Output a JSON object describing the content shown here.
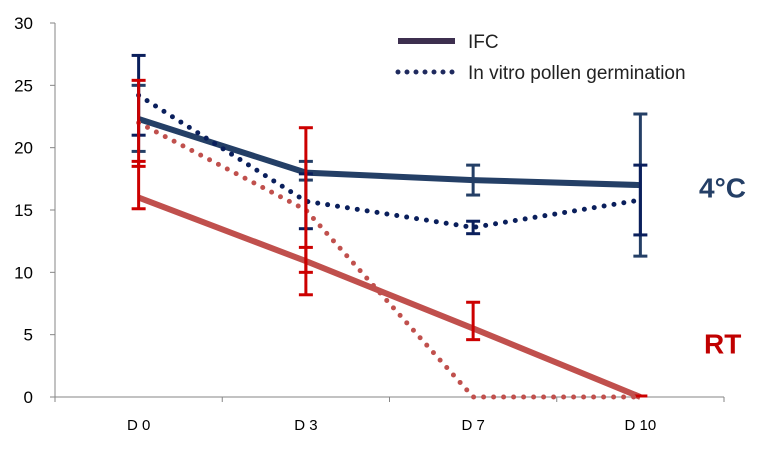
{
  "chart_data": {
    "type": "line",
    "categories": [
      "D 0",
      "D 3",
      "D 7",
      "D 10"
    ],
    "ylim": [
      0,
      30
    ],
    "yticks": [
      0,
      5,
      10,
      15,
      20,
      25,
      30
    ],
    "grid": false,
    "legend_placement": "top-right",
    "legend": [
      {
        "label": "IFC",
        "style": "solid",
        "color": "#3d2f4f"
      },
      {
        "label": "In vitro pollen germination",
        "style": "dotted",
        "color": "#1f2a5e"
      }
    ],
    "group_labels": [
      {
        "text": "4°C",
        "color": "#243f66",
        "y": 16
      },
      {
        "text": "RT",
        "color": "#c00000",
        "y": 3.5
      }
    ],
    "series": [
      {
        "group": "4°C",
        "kind": "IFC",
        "style": "solid",
        "color": "#243f66",
        "errcolor": "#243f66",
        "values": [
          22.3,
          18.0,
          17.4,
          17.0
        ],
        "err_low": [
          19.7,
          17.4,
          16.2,
          11.3
        ],
        "err_high": [
          25.0,
          18.9,
          18.6,
          22.7
        ]
      },
      {
        "group": "4°C",
        "kind": "In vitro pollen germination",
        "style": "dotted",
        "color": "#0a1f5c",
        "errcolor": "#0a1f5c",
        "values": [
          24.2,
          15.7,
          13.6,
          15.8
        ],
        "err_low": [
          21.0,
          13.5,
          13.1,
          13.0
        ],
        "err_high": [
          27.4,
          17.9,
          14.1,
          18.6
        ]
      },
      {
        "group": "RT",
        "kind": "IFC",
        "style": "solid",
        "color": "#c0504d",
        "errcolor": "#cc0000",
        "values": [
          16.0,
          10.9,
          5.5,
          0
        ],
        "err_low": [
          15.1,
          10.0,
          4.6,
          0
        ],
        "err_high": [
          18.9,
          12.0,
          7.6,
          0
        ]
      },
      {
        "group": "RT",
        "kind": "In vitro pollen germination",
        "style": "dotted",
        "color": "#c0504d",
        "errcolor": "#cc0000",
        "values": [
          22.0,
          15.0,
          0,
          0
        ],
        "err_low": [
          18.5,
          8.2,
          0,
          0
        ],
        "err_high": [
          25.4,
          21.6,
          0,
          0
        ]
      }
    ]
  }
}
